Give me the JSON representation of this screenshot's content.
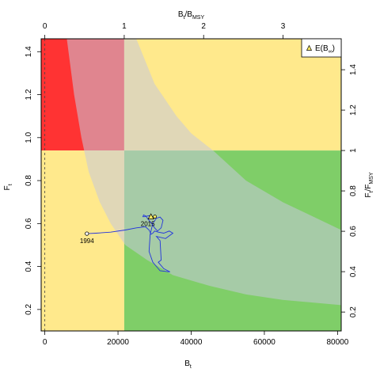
{
  "chart_data": {
    "type": "line",
    "title": "",
    "xlabel": "B",
    "xlabel_sub": "t",
    "ylabel": "F",
    "ylabel_sub": "t",
    "top_axis_label": {
      "num": "B",
      "num_sub": "t",
      "den": "B",
      "den_sub": "MSY"
    },
    "right_axis_label": {
      "num": "F",
      "num_sub": "t",
      "den": "F",
      "den_sub": "MSY"
    },
    "xlim": [
      -1000,
      81000
    ],
    "ylim": [
      0.1,
      1.46
    ],
    "x_ticks": [
      0,
      20000,
      40000,
      60000,
      80000
    ],
    "y_ticks": [
      0.2,
      0.4,
      0.6,
      0.8,
      1.0,
      1.2,
      1.4
    ],
    "top_ticks": [
      0,
      1,
      2,
      3
    ],
    "right_ticks": [
      0.2,
      0.4,
      0.6,
      0.8,
      1.0,
      1.2,
      1.4
    ],
    "Bmsy": 21700,
    "Fmsy": 0.94,
    "dashed_vline_x": 0,
    "colors": {
      "red": "#ff3333",
      "yellow": "#ffe98c",
      "green": "#7fce68",
      "ci_band": "#c7c9db",
      "ci_alpha": 0.55,
      "trajectory": "#2233dd",
      "triangle": "#ffee66"
    },
    "ci_band_description_points": {
      "upper": [
        [
          6000,
          1.46
        ],
        [
          14000,
          1.46
        ],
        [
          20000,
          1.46
        ],
        [
          25000,
          1.46
        ],
        [
          30000,
          1.25
        ],
        [
          36000,
          1.1
        ],
        [
          40000,
          1.02
        ],
        [
          46000,
          0.94
        ],
        [
          55000,
          0.8
        ],
        [
          65000,
          0.7
        ],
        [
          81000,
          0.57
        ]
      ],
      "lower": [
        [
          6000,
          1.46
        ],
        [
          8000,
          1.2
        ],
        [
          10000,
          1.0
        ],
        [
          12000,
          0.84
        ],
        [
          15000,
          0.7
        ],
        [
          18000,
          0.6
        ],
        [
          22000,
          0.5
        ],
        [
          28000,
          0.43
        ],
        [
          35000,
          0.36
        ],
        [
          45000,
          0.31
        ],
        [
          55000,
          0.27
        ],
        [
          65000,
          0.245
        ],
        [
          81000,
          0.22
        ]
      ]
    },
    "series": [
      {
        "values": [
          [
            11500,
            0.553
          ],
          [
            14000,
            0.555
          ],
          [
            18000,
            0.56
          ],
          [
            22000,
            0.57
          ],
          [
            25000,
            0.58
          ],
          [
            27500,
            0.585
          ],
          [
            28500,
            0.57
          ],
          [
            29000,
            0.55
          ],
          [
            29500,
            0.555
          ],
          [
            30000,
            0.565
          ],
          [
            31000,
            0.56
          ],
          [
            32500,
            0.555
          ],
          [
            34000,
            0.565
          ],
          [
            35000,
            0.555
          ],
          [
            33000,
            0.53
          ],
          [
            30500,
            0.54
          ],
          [
            31500,
            0.52
          ],
          [
            31800,
            0.43
          ],
          [
            31000,
            0.42
          ],
          [
            32500,
            0.39
          ],
          [
            34200,
            0.375
          ],
          [
            31500,
            0.38
          ],
          [
            29500,
            0.42
          ],
          [
            28500,
            0.47
          ],
          [
            28800,
            0.55
          ],
          [
            29500,
            0.6
          ],
          [
            30500,
            0.625
          ],
          [
            31500,
            0.63
          ],
          [
            32300,
            0.615
          ],
          [
            31800,
            0.58
          ],
          [
            30800,
            0.565
          ],
          [
            30000,
            0.58
          ],
          [
            29200,
            0.6
          ],
          [
            28200,
            0.62
          ],
          [
            27600,
            0.635
          ],
          [
            27000,
            0.64
          ],
          [
            26800,
            0.632
          ],
          [
            27300,
            0.632
          ],
          [
            28500,
            0.637
          ],
          [
            29300,
            0.628
          ],
          [
            29000,
            0.632
          ]
        ]
      }
    ],
    "points": [
      {
        "label": "1994",
        "x": 11500,
        "y": 0.553
      },
      {
        "label": "2015",
        "x": 29000,
        "y": 0.632
      }
    ],
    "legend": {
      "position": "top-right",
      "entries": [
        {
          "label": "E(B",
          "sub": "∞",
          "suffix": ")"
        }
      ]
    }
  }
}
